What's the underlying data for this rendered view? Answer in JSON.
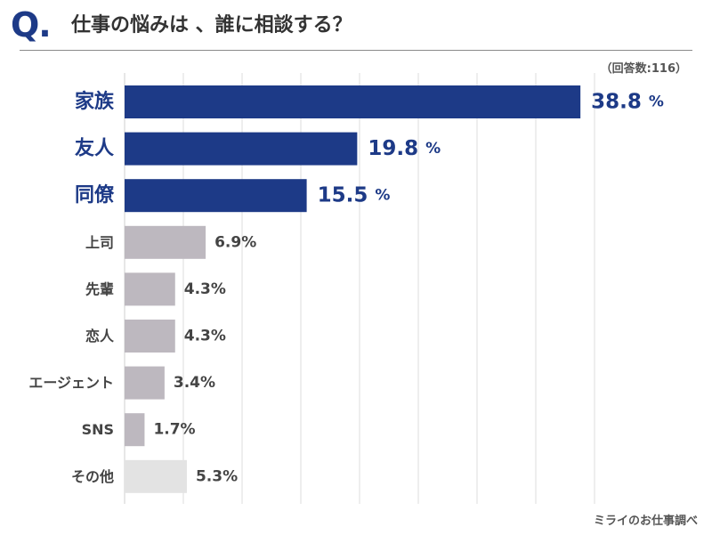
{
  "header": {
    "q_mark": "Q.",
    "title": "仕事の悩みは 、誰に相談する？"
  },
  "note": "（回答数:116）",
  "source": "ミライのお仕事調べ",
  "colors": {
    "highlight": "#1d3a87",
    "normal": "#bdb8bf",
    "other": "#e3e3e3",
    "grid": "#dcdcdc",
    "label_dark": "#444444"
  },
  "chart_data": {
    "type": "bar",
    "orientation": "horizontal",
    "title": "仕事の悩みは 、誰に相談する？",
    "xlabel": "",
    "ylabel": "",
    "unit": "%",
    "xlim": [
      0,
      40
    ],
    "grid": true,
    "categories": [
      "家族",
      "友人",
      "同僚",
      "上司",
      "先輩",
      "恋人",
      "エージェント",
      "SNS",
      "その他"
    ],
    "values": [
      38.8,
      19.8,
      15.5,
      6.9,
      4.3,
      4.3,
      3.4,
      1.7,
      5.3
    ],
    "value_labels": [
      "38.8",
      "19.8",
      "15.5",
      "6.9%",
      "4.3%",
      "4.3%",
      "3.4%",
      "1.7%",
      "5.3%"
    ],
    "highlighted": [
      true,
      true,
      true,
      false,
      false,
      false,
      false,
      false,
      false
    ],
    "other": [
      false,
      false,
      false,
      false,
      false,
      false,
      false,
      false,
      true
    ]
  }
}
